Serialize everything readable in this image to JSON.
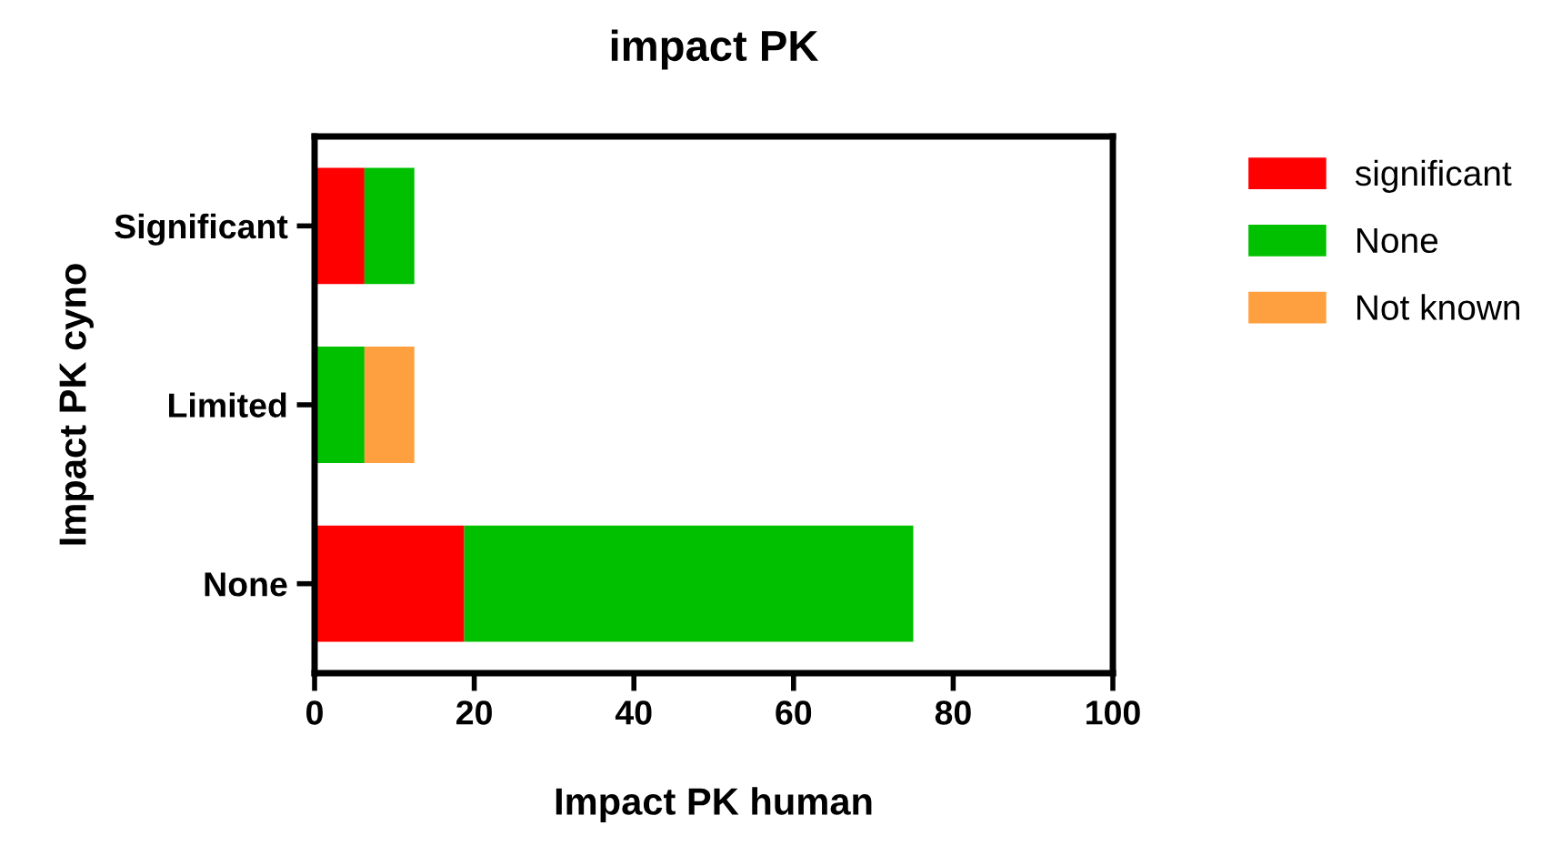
{
  "chart_data": {
    "type": "bar",
    "orientation": "horizontal",
    "stacked": true,
    "title": "impact PK",
    "xlabel": "Impact PK human",
    "ylabel": "Impact PK cyno",
    "categories": [
      "Significant",
      "Limited",
      "None"
    ],
    "series": [
      {
        "name": "significant",
        "color": "#ff0000",
        "values": [
          6.25,
          0,
          18.75
        ]
      },
      {
        "name": "None",
        "color": "#00c000",
        "values": [
          6.25,
          6.25,
          56.25
        ]
      },
      {
        "name": "Not known",
        "color": "#ffa040",
        "values": [
          0,
          6.25,
          0
        ]
      }
    ],
    "xlim": [
      0,
      100
    ],
    "xticks": [
      0,
      20,
      40,
      60,
      80,
      100
    ],
    "grid": false,
    "legend": "right"
  }
}
